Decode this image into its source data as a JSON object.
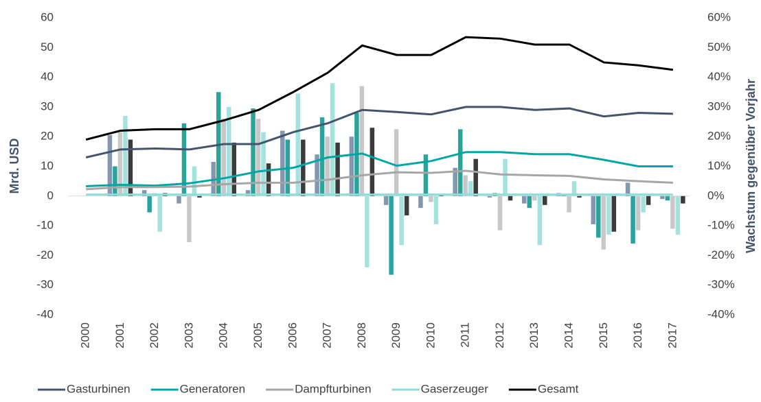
{
  "chart_data": {
    "type": "bar-line",
    "y_label": "Mrd. USD",
    "y2_label": "Wachstum gegenüber Vorjahr",
    "categories": [
      "2000",
      "2001",
      "2002",
      "2003",
      "2004",
      "2005",
      "2006",
      "2007",
      "2008",
      "2009",
      "2010",
      "2011",
      "2012",
      "2013",
      "2014",
      "2015",
      "2016",
      "2017"
    ],
    "ylim": [
      -40,
      60
    ],
    "yticks": [
      -40,
      -30,
      -20,
      -10,
      0,
      10,
      20,
      30,
      40,
      50,
      60
    ],
    "y2lim": [
      -40,
      60
    ],
    "y2ticks": [
      {
        "value": -40,
        "label": "-40%"
      },
      {
        "value": -30,
        "label": "-30%"
      },
      {
        "value": -20,
        "label": "-20%"
      },
      {
        "value": -10,
        "label": "-10%"
      },
      {
        "value": 0,
        "label": "0%"
      },
      {
        "value": 10,
        "label": "10%"
      },
      {
        "value": 20,
        "label": "20%"
      },
      {
        "value": 30,
        "label": "30%"
      },
      {
        "value": 40,
        "label": "40%"
      },
      {
        "value": 50,
        "label": "50%"
      },
      {
        "value": 60,
        "label": "60%"
      }
    ],
    "series": [
      {
        "name": "Gasturbinen",
        "color": "#44546a",
        "bar_color": "#8497b0",
        "values": [
          13,
          15.7,
          16,
          15.7,
          17.5,
          17.5,
          21.5,
          24.5,
          29,
          28.3,
          27.5,
          30,
          30,
          29,
          29.5,
          26.8,
          28,
          27.7
        ],
        "growth": [
          null,
          20.5,
          2,
          -2.5,
          11.5,
          2,
          22,
          14,
          20,
          -3,
          -4,
          9.5,
          -0.5,
          -2.5,
          1,
          -9.5,
          4.5,
          -1
        ]
      },
      {
        "name": "Generatoren",
        "color": "#00a6a6",
        "bar_color": "#2aa39a",
        "values": [
          3.3,
          3.8,
          3.5,
          4.3,
          6,
          8.3,
          9.5,
          13,
          14.3,
          10.2,
          11.8,
          14.8,
          14.8,
          14.1,
          14.1,
          12.2,
          10,
          10
        ],
        "growth": [
          null,
          10,
          -5.5,
          24.5,
          35,
          29.5,
          19,
          26.5,
          28,
          -26.5,
          14,
          22.5,
          1,
          -4,
          0.5,
          -14,
          -16,
          -1.5
        ]
      },
      {
        "name": "Dampfturbinen",
        "color": "#a6a6a6",
        "bar_color": "#c8c8c8",
        "values": [
          2.3,
          3,
          3,
          3.2,
          4,
          4.5,
          4.5,
          5.5,
          7,
          8,
          7.8,
          8.5,
          7.3,
          7,
          6.8,
          5.6,
          5,
          4.5
        ],
        "growth": [
          null,
          21.5,
          1,
          -15.5,
          26,
          26,
          0.5,
          20,
          37,
          22.5,
          -2,
          7,
          -11.5,
          -1.5,
          -5.5,
          -18,
          -11.5,
          -11
        ]
      },
      {
        "name": "Gaserzeuger",
        "color": "#8fdcdc",
        "bar_color": "#a4e2e0",
        "values": [
          0.5,
          0.5,
          0.5,
          0.5,
          0.5,
          0.5,
          0.5,
          0.5,
          0.5,
          0.5,
          0.5,
          0.5,
          0.5,
          0.5,
          0.5,
          0.5,
          0.5,
          0.5
        ],
        "growth": [
          null,
          27,
          -12,
          10,
          30,
          21.5,
          34.5,
          38,
          -24,
          -16.5,
          -9.5,
          5,
          12.5,
          -16.5,
          5,
          -13,
          -5.5,
          -13
        ]
      },
      {
        "name": "Gesamt",
        "color": "#000000",
        "bar_color": "#3b3b3b",
        "values": [
          19,
          22,
          22.5,
          22.5,
          25.5,
          29,
          35,
          41.5,
          50.7,
          47.5,
          47.5,
          53.5,
          53,
          51,
          51,
          45,
          44,
          42.5
        ],
        "growth": [
          null,
          19,
          1,
          -0.5,
          18,
          11,
          19,
          18,
          23,
          -6.5,
          0.5,
          12.5,
          -1.5,
          -3,
          -0.5,
          -12,
          -3,
          -2.5
        ]
      }
    ]
  }
}
